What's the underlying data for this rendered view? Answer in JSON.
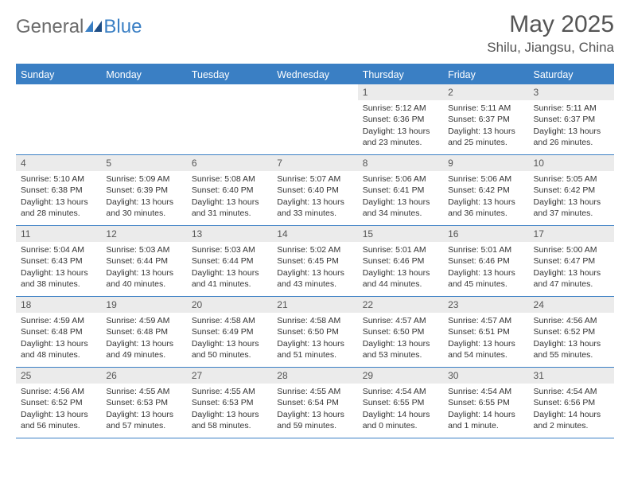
{
  "logo": {
    "text1": "General",
    "text2": "Blue"
  },
  "header": {
    "month_title": "May 2025",
    "location": "Shilu, Jiangsu, China"
  },
  "colors": {
    "header_bg": "#3a7fc4",
    "header_text": "#ffffff",
    "day_num_bg": "#ebebeb",
    "border": "#3a7fc4",
    "text": "#333333",
    "logo_gray": "#6b6b6b",
    "logo_blue": "#3a7fc4"
  },
  "day_names": [
    "Sunday",
    "Monday",
    "Tuesday",
    "Wednesday",
    "Thursday",
    "Friday",
    "Saturday"
  ],
  "weeks": [
    [
      null,
      null,
      null,
      null,
      {
        "n": "1",
        "sunrise": "Sunrise: 5:12 AM",
        "sunset": "Sunset: 6:36 PM",
        "daylight": "Daylight: 13 hours and 23 minutes."
      },
      {
        "n": "2",
        "sunrise": "Sunrise: 5:11 AM",
        "sunset": "Sunset: 6:37 PM",
        "daylight": "Daylight: 13 hours and 25 minutes."
      },
      {
        "n": "3",
        "sunrise": "Sunrise: 5:11 AM",
        "sunset": "Sunset: 6:37 PM",
        "daylight": "Daylight: 13 hours and 26 minutes."
      }
    ],
    [
      {
        "n": "4",
        "sunrise": "Sunrise: 5:10 AM",
        "sunset": "Sunset: 6:38 PM",
        "daylight": "Daylight: 13 hours and 28 minutes."
      },
      {
        "n": "5",
        "sunrise": "Sunrise: 5:09 AM",
        "sunset": "Sunset: 6:39 PM",
        "daylight": "Daylight: 13 hours and 30 minutes."
      },
      {
        "n": "6",
        "sunrise": "Sunrise: 5:08 AM",
        "sunset": "Sunset: 6:40 PM",
        "daylight": "Daylight: 13 hours and 31 minutes."
      },
      {
        "n": "7",
        "sunrise": "Sunrise: 5:07 AM",
        "sunset": "Sunset: 6:40 PM",
        "daylight": "Daylight: 13 hours and 33 minutes."
      },
      {
        "n": "8",
        "sunrise": "Sunrise: 5:06 AM",
        "sunset": "Sunset: 6:41 PM",
        "daylight": "Daylight: 13 hours and 34 minutes."
      },
      {
        "n": "9",
        "sunrise": "Sunrise: 5:06 AM",
        "sunset": "Sunset: 6:42 PM",
        "daylight": "Daylight: 13 hours and 36 minutes."
      },
      {
        "n": "10",
        "sunrise": "Sunrise: 5:05 AM",
        "sunset": "Sunset: 6:42 PM",
        "daylight": "Daylight: 13 hours and 37 minutes."
      }
    ],
    [
      {
        "n": "11",
        "sunrise": "Sunrise: 5:04 AM",
        "sunset": "Sunset: 6:43 PM",
        "daylight": "Daylight: 13 hours and 38 minutes."
      },
      {
        "n": "12",
        "sunrise": "Sunrise: 5:03 AM",
        "sunset": "Sunset: 6:44 PM",
        "daylight": "Daylight: 13 hours and 40 minutes."
      },
      {
        "n": "13",
        "sunrise": "Sunrise: 5:03 AM",
        "sunset": "Sunset: 6:44 PM",
        "daylight": "Daylight: 13 hours and 41 minutes."
      },
      {
        "n": "14",
        "sunrise": "Sunrise: 5:02 AM",
        "sunset": "Sunset: 6:45 PM",
        "daylight": "Daylight: 13 hours and 43 minutes."
      },
      {
        "n": "15",
        "sunrise": "Sunrise: 5:01 AM",
        "sunset": "Sunset: 6:46 PM",
        "daylight": "Daylight: 13 hours and 44 minutes."
      },
      {
        "n": "16",
        "sunrise": "Sunrise: 5:01 AM",
        "sunset": "Sunset: 6:46 PM",
        "daylight": "Daylight: 13 hours and 45 minutes."
      },
      {
        "n": "17",
        "sunrise": "Sunrise: 5:00 AM",
        "sunset": "Sunset: 6:47 PM",
        "daylight": "Daylight: 13 hours and 47 minutes."
      }
    ],
    [
      {
        "n": "18",
        "sunrise": "Sunrise: 4:59 AM",
        "sunset": "Sunset: 6:48 PM",
        "daylight": "Daylight: 13 hours and 48 minutes."
      },
      {
        "n": "19",
        "sunrise": "Sunrise: 4:59 AM",
        "sunset": "Sunset: 6:48 PM",
        "daylight": "Daylight: 13 hours and 49 minutes."
      },
      {
        "n": "20",
        "sunrise": "Sunrise: 4:58 AM",
        "sunset": "Sunset: 6:49 PM",
        "daylight": "Daylight: 13 hours and 50 minutes."
      },
      {
        "n": "21",
        "sunrise": "Sunrise: 4:58 AM",
        "sunset": "Sunset: 6:50 PM",
        "daylight": "Daylight: 13 hours and 51 minutes."
      },
      {
        "n": "22",
        "sunrise": "Sunrise: 4:57 AM",
        "sunset": "Sunset: 6:50 PM",
        "daylight": "Daylight: 13 hours and 53 minutes."
      },
      {
        "n": "23",
        "sunrise": "Sunrise: 4:57 AM",
        "sunset": "Sunset: 6:51 PM",
        "daylight": "Daylight: 13 hours and 54 minutes."
      },
      {
        "n": "24",
        "sunrise": "Sunrise: 4:56 AM",
        "sunset": "Sunset: 6:52 PM",
        "daylight": "Daylight: 13 hours and 55 minutes."
      }
    ],
    [
      {
        "n": "25",
        "sunrise": "Sunrise: 4:56 AM",
        "sunset": "Sunset: 6:52 PM",
        "daylight": "Daylight: 13 hours and 56 minutes."
      },
      {
        "n": "26",
        "sunrise": "Sunrise: 4:55 AM",
        "sunset": "Sunset: 6:53 PM",
        "daylight": "Daylight: 13 hours and 57 minutes."
      },
      {
        "n": "27",
        "sunrise": "Sunrise: 4:55 AM",
        "sunset": "Sunset: 6:53 PM",
        "daylight": "Daylight: 13 hours and 58 minutes."
      },
      {
        "n": "28",
        "sunrise": "Sunrise: 4:55 AM",
        "sunset": "Sunset: 6:54 PM",
        "daylight": "Daylight: 13 hours and 59 minutes."
      },
      {
        "n": "29",
        "sunrise": "Sunrise: 4:54 AM",
        "sunset": "Sunset: 6:55 PM",
        "daylight": "Daylight: 14 hours and 0 minutes."
      },
      {
        "n": "30",
        "sunrise": "Sunrise: 4:54 AM",
        "sunset": "Sunset: 6:55 PM",
        "daylight": "Daylight: 14 hours and 1 minute."
      },
      {
        "n": "31",
        "sunrise": "Sunrise: 4:54 AM",
        "sunset": "Sunset: 6:56 PM",
        "daylight": "Daylight: 14 hours and 2 minutes."
      }
    ]
  ]
}
